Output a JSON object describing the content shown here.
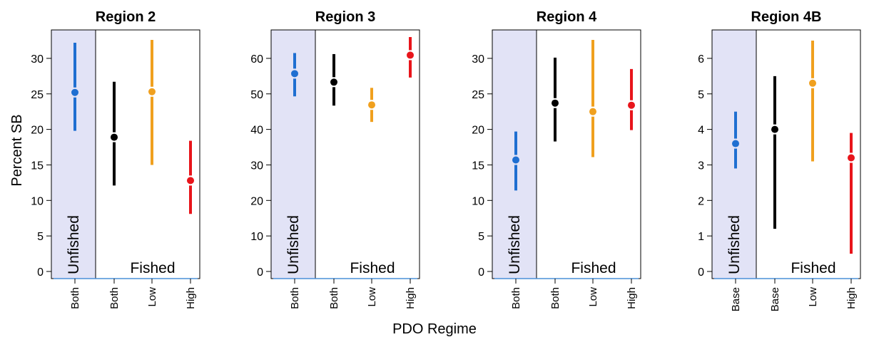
{
  "ylabel": "Percent SB",
  "xlabel": "PDO Regime",
  "colors": {
    "blue": "#1f6fd1",
    "black": "#000000",
    "orange": "#f0a01e",
    "red": "#e8151b",
    "unfished_band": "#e2e3f6"
  },
  "chart_data": [
    {
      "type": "scatter",
      "title": "Region 2",
      "ylim": [
        0,
        33
      ],
      "yticks": [
        0,
        5,
        10,
        15,
        20,
        25,
        30
      ],
      "band_label": "Unfished",
      "fished_label": "Fished",
      "categories": [
        "Both",
        "Both",
        "Low",
        "High"
      ],
      "points": [
        {
          "category": "Both",
          "group": "Unfished",
          "color": "blue",
          "median": 25.2,
          "lower": 19.8,
          "upper": 32.2
        },
        {
          "category": "Both",
          "group": "Fished",
          "color": "black",
          "median": 18.9,
          "lower": 12.1,
          "upper": 26.7
        },
        {
          "category": "Low",
          "group": "Fished",
          "color": "orange",
          "median": 25.3,
          "lower": 15.0,
          "upper": 32.6
        },
        {
          "category": "High",
          "group": "Fished",
          "color": "red",
          "median": 12.8,
          "lower": 8.1,
          "upper": 18.4
        }
      ]
    },
    {
      "type": "scatter",
      "title": "Region 3",
      "ylim": [
        0,
        66
      ],
      "yticks": [
        0,
        10,
        20,
        30,
        40,
        50,
        60
      ],
      "band_label": "Unfished",
      "fished_label": "Fished",
      "categories": [
        "Both",
        "Both",
        "Low",
        "High"
      ],
      "points": [
        {
          "category": "Both",
          "group": "Unfished",
          "color": "blue",
          "median": 55.7,
          "lower": 49.3,
          "upper": 61.5
        },
        {
          "category": "Both",
          "group": "Fished",
          "color": "black",
          "median": 53.3,
          "lower": 46.7,
          "upper": 61.2
        },
        {
          "category": "Low",
          "group": "Fished",
          "color": "orange",
          "median": 46.9,
          "lower": 42.1,
          "upper": 51.7
        },
        {
          "category": "High",
          "group": "Fished",
          "color": "red",
          "median": 60.9,
          "lower": 54.6,
          "upper": 66.0
        }
      ]
    },
    {
      "type": "scatter",
      "title": "Region 4",
      "ylim": [
        0,
        33
      ],
      "yticks": [
        0,
        5,
        10,
        15,
        20,
        25,
        30
      ],
      "band_label": "Unfished",
      "fished_label": "Fished",
      "categories": [
        "Both",
        "Both",
        "Low",
        "High"
      ],
      "points": [
        {
          "category": "Both",
          "group": "Unfished",
          "color": "blue",
          "median": 15.7,
          "lower": 11.4,
          "upper": 19.7
        },
        {
          "category": "Both",
          "group": "Fished",
          "color": "black",
          "median": 23.7,
          "lower": 18.3,
          "upper": 30.1
        },
        {
          "category": "Low",
          "group": "Fished",
          "color": "orange",
          "median": 22.5,
          "lower": 16.1,
          "upper": 32.6
        },
        {
          "category": "High",
          "group": "Fished",
          "color": "red",
          "median": 23.4,
          "lower": 19.9,
          "upper": 28.5
        }
      ]
    },
    {
      "type": "scatter",
      "title": "Region 4B",
      "ylim": [
        0,
        6.6
      ],
      "yticks": [
        0,
        1,
        2,
        3,
        4,
        5,
        6
      ],
      "band_label": "Unfished",
      "fished_label": "Fished",
      "categories": [
        "Base",
        "Base",
        "Low",
        "High"
      ],
      "points": [
        {
          "category": "Base",
          "group": "Unfished",
          "color": "blue",
          "median": 3.6,
          "lower": 2.9,
          "upper": 4.5
        },
        {
          "category": "Base",
          "group": "Fished",
          "color": "black",
          "median": 4.0,
          "lower": 1.2,
          "upper": 5.5
        },
        {
          "category": "Low",
          "group": "Fished",
          "color": "orange",
          "median": 5.3,
          "lower": 3.1,
          "upper": 6.5
        },
        {
          "category": "High",
          "group": "Fished",
          "color": "red",
          "median": 3.2,
          "lower": 0.5,
          "upper": 3.9
        }
      ]
    }
  ]
}
